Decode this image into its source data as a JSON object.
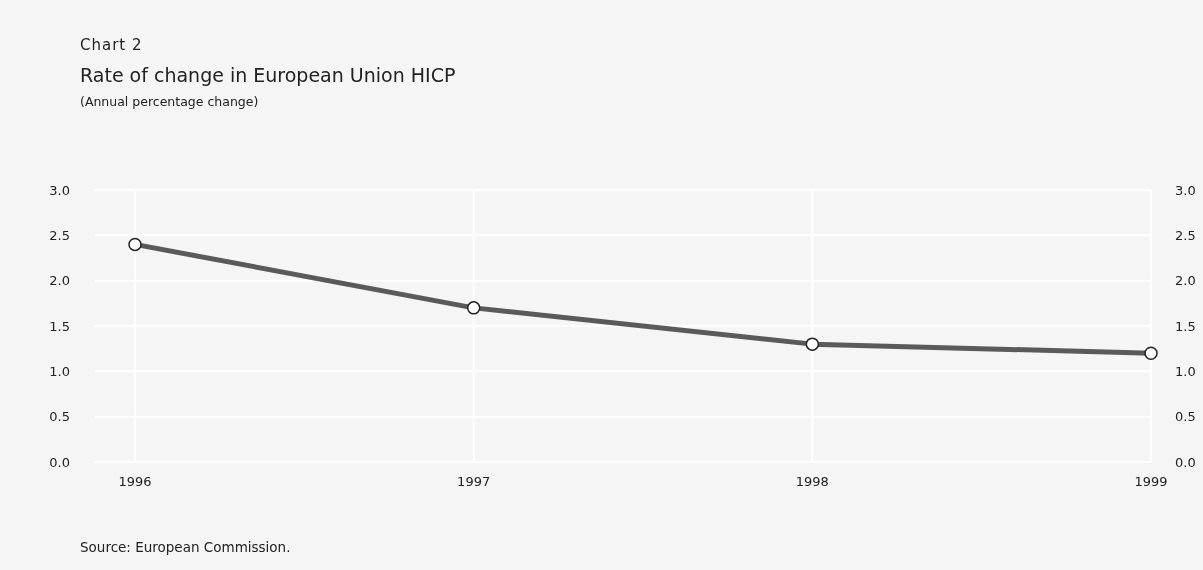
{
  "chart_data": {
    "type": "line",
    "title": "Rate of change in European Union HICP",
    "subtitle": "(Annual percentage change)",
    "annotations": [
      "Chart 2",
      "Source: European Commission."
    ],
    "categories": [
      "1996",
      "1997",
      "1998",
      "1999"
    ],
    "series": [
      {
        "color": "#5a5a5a",
        "values": [
          2.4,
          1.7,
          1.3,
          1.2
        ]
      }
    ],
    "ylim": [
      0,
      3
    ],
    "yticks": [
      {
        "value": 0,
        "label": "0.0"
      },
      {
        "value": 0.5,
        "label": "0.5"
      },
      {
        "value": 1,
        "label": "1.0"
      },
      {
        "value": 1.5,
        "label": "1.5"
      },
      {
        "value": 2,
        "label": "2.0"
      },
      {
        "value": 2.5,
        "label": "2.5"
      },
      {
        "value": 3,
        "label": "3.0"
      }
    ],
    "y2lim": [
      0,
      3
    ],
    "y2ticks": [
      {
        "value": 0,
        "label": "0.0"
      },
      {
        "value": 0.5,
        "label": "0.5"
      },
      {
        "value": 1,
        "label": "1.0"
      },
      {
        "value": 1.5,
        "label": "1.5"
      },
      {
        "value": 2,
        "label": "2.0"
      },
      {
        "value": 2.5,
        "label": "2.5"
      },
      {
        "value": 3,
        "label": "3.0"
      }
    ],
    "grid": true,
    "marker": "circle",
    "line_style": "solid"
  }
}
